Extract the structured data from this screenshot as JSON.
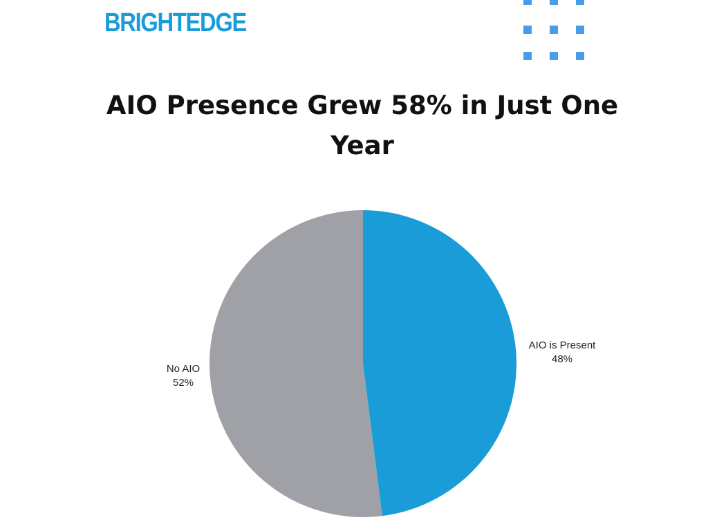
{
  "brand": {
    "logo_text": "BRIGHTEDGE",
    "color": "#1a9cd8"
  },
  "decoration": {
    "dot_color": "#4a9be8"
  },
  "chart_data": {
    "type": "pie",
    "title": "AIO Presence Grew 58% in Just One Year",
    "slices": [
      {
        "name": "AIO is Present",
        "value": 48,
        "label": "48%",
        "color": "#1a9cd8"
      },
      {
        "name": "No AIO",
        "value": 52,
        "label": "52%",
        "color": "#a0a1a6"
      }
    ],
    "start": "12 o'clock",
    "direction": "clockwise"
  }
}
